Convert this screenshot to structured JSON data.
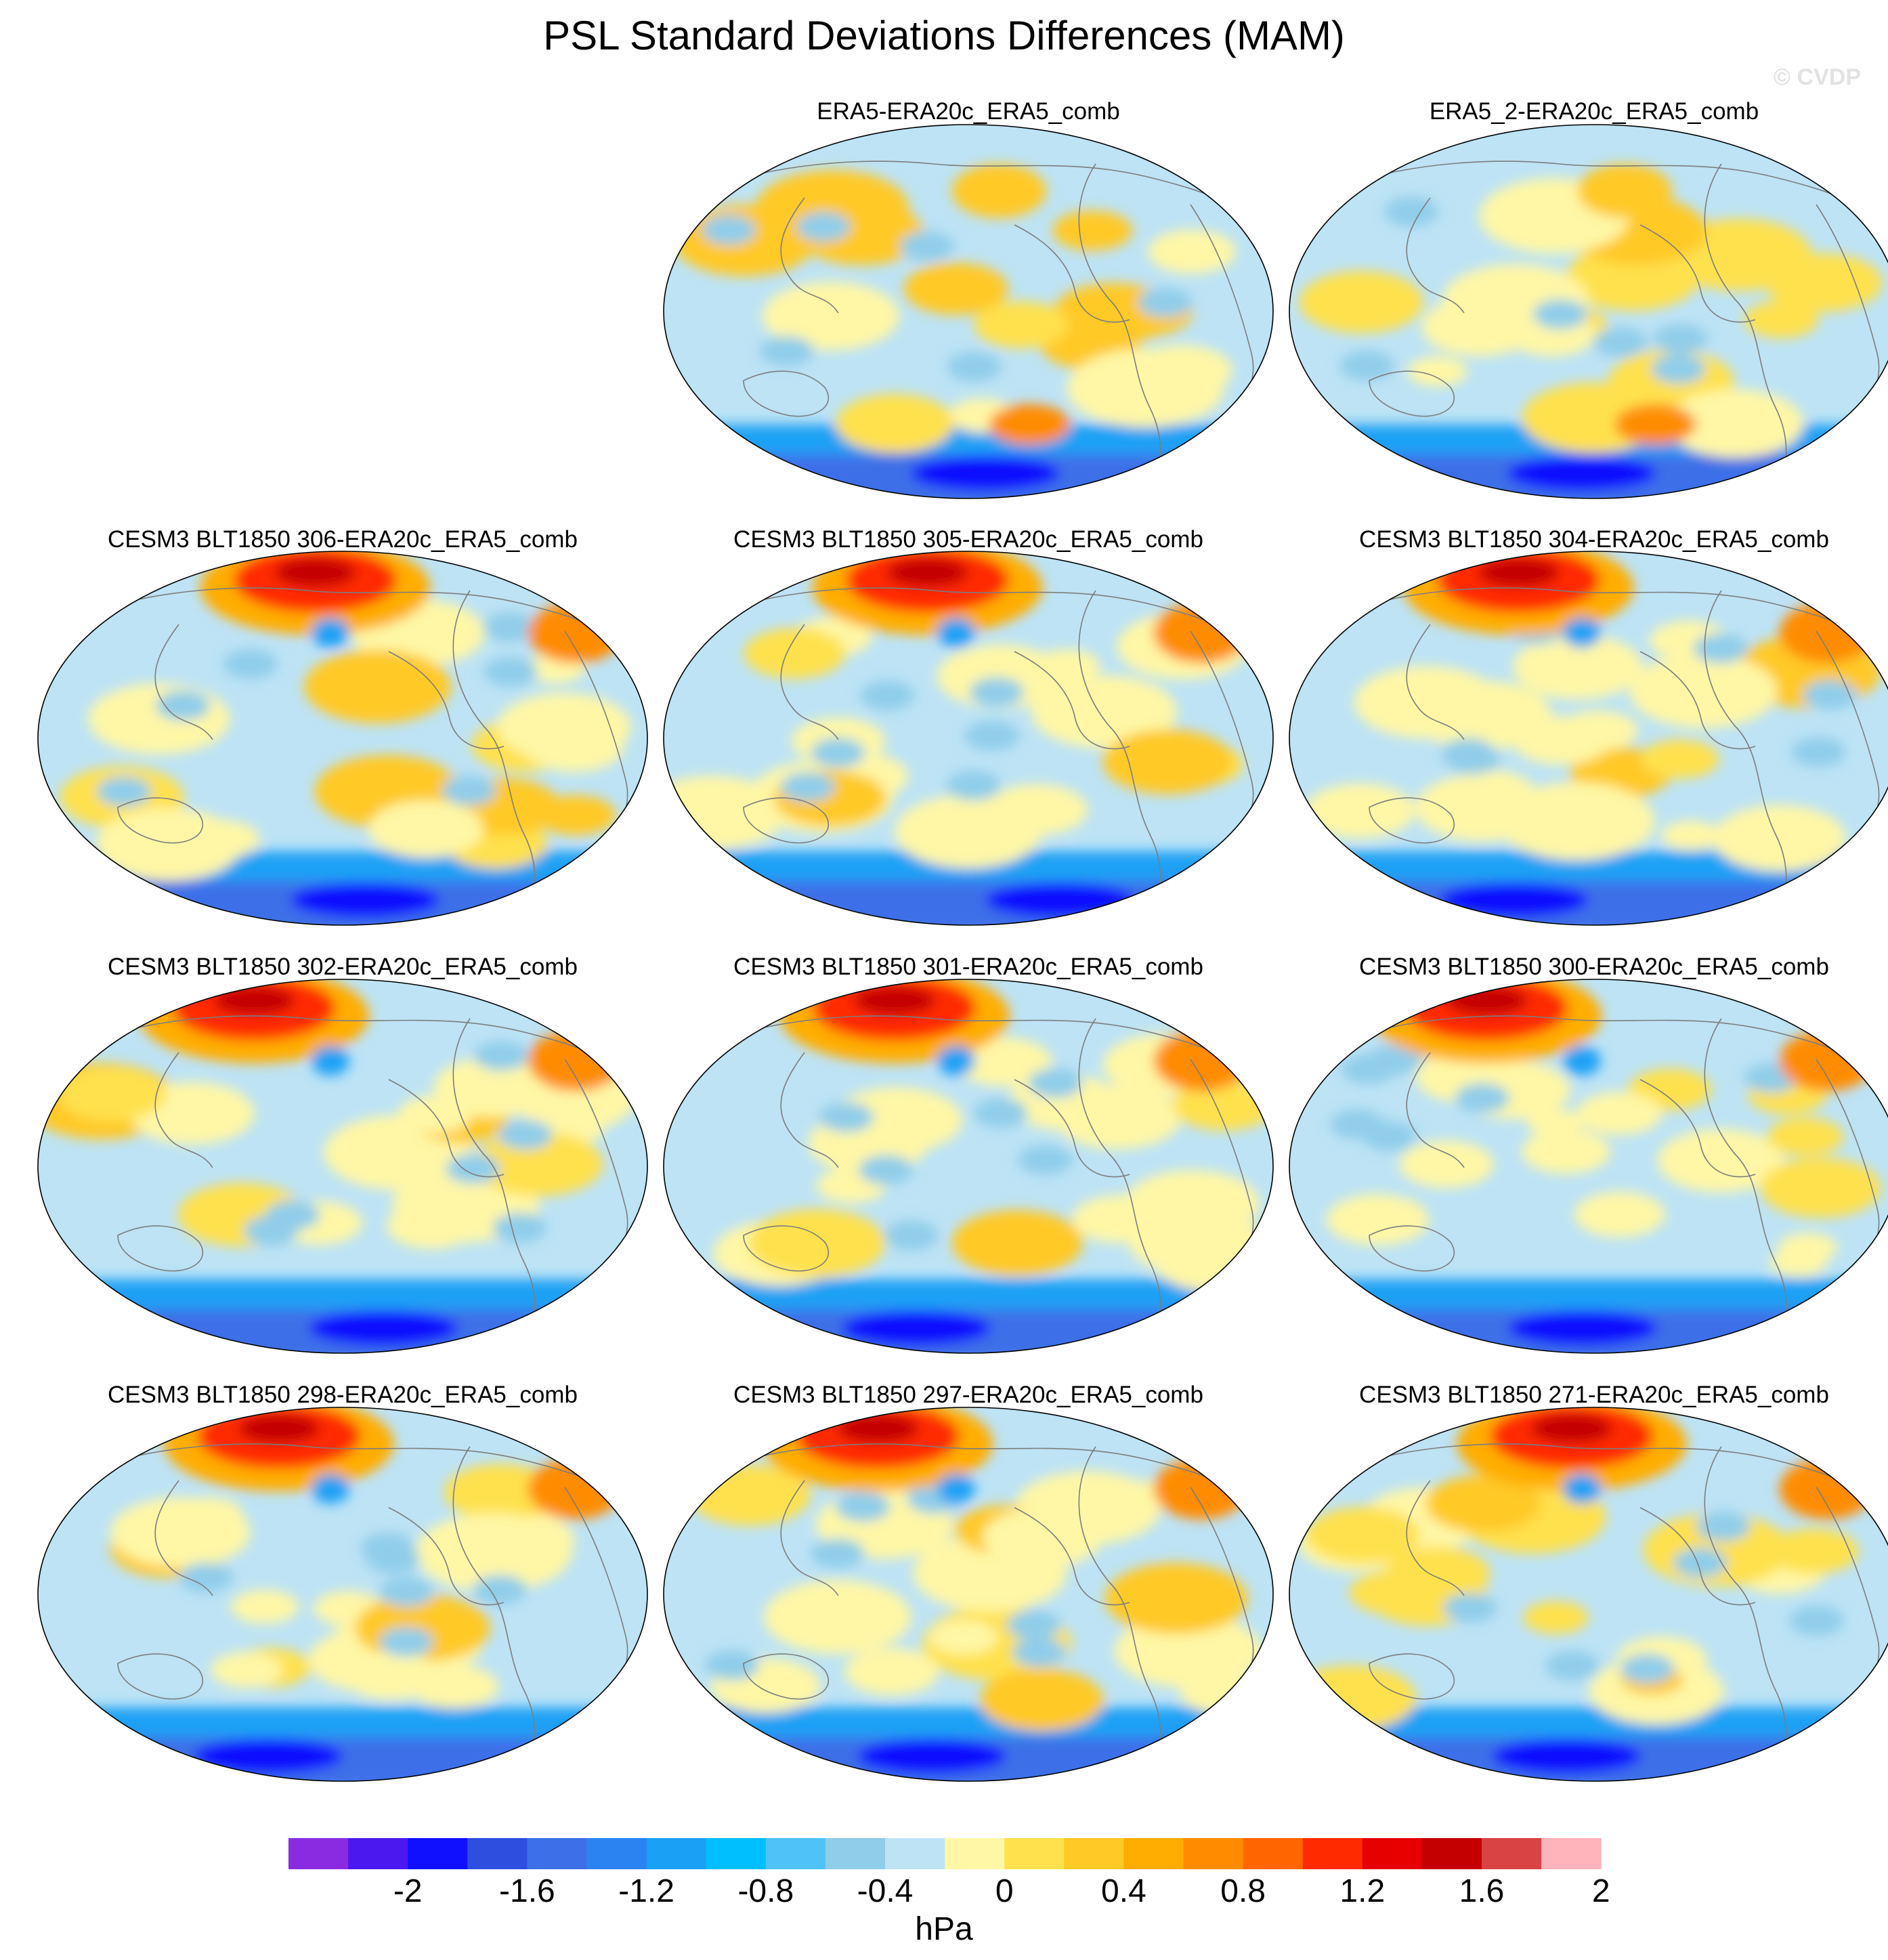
{
  "title": "PSL Standard Deviations Differences (MAM)",
  "watermark": "© CVDP",
  "panels": [
    {
      "title": "ERA5-ERA20c_ERA5_comb",
      "row": 0,
      "col": 1
    },
    {
      "title": "ERA5_2-ERA20c_ERA5_comb",
      "row": 0,
      "col": 2
    },
    {
      "title": "CESM3 BLT1850 306-ERA20c_ERA5_comb",
      "row": 1,
      "col": 0
    },
    {
      "title": "CESM3 BLT1850 305-ERA20c_ERA5_comb",
      "row": 1,
      "col": 1
    },
    {
      "title": "CESM3 BLT1850 304-ERA20c_ERA5_comb",
      "row": 1,
      "col": 2
    },
    {
      "title": "CESM3 BLT1850 302-ERA20c_ERA5_comb",
      "row": 2,
      "col": 0
    },
    {
      "title": "CESM3 BLT1850 301-ERA20c_ERA5_comb",
      "row": 2,
      "col": 1
    },
    {
      "title": "CESM3 BLT1850 300-ERA20c_ERA5_comb",
      "row": 2,
      "col": 2
    },
    {
      "title": "CESM3 BLT1850 298-ERA20c_ERA5_comb",
      "row": 3,
      "col": 0
    },
    {
      "title": "CESM3 BLT1850 297-ERA20c_ERA5_comb",
      "row": 3,
      "col": 1
    },
    {
      "title": "CESM3 BLT1850 271-ERA20c_ERA5_comb",
      "row": 3,
      "col": 2
    }
  ],
  "colorbar": {
    "unit": "hPa",
    "colors": [
      "#8a2be2",
      "#4b18f0",
      "#1010ff",
      "#2e4ee0",
      "#3c6fe8",
      "#2b83f2",
      "#1aa1f5",
      "#00bfff",
      "#4fc3f7",
      "#90cdea",
      "#bde3f5",
      "#fff7a6",
      "#ffe14d",
      "#ffc926",
      "#ffad00",
      "#ff8c00",
      "#ff6600",
      "#ff2a00",
      "#e60000",
      "#c40000",
      "#d94343",
      "#ffb3ba"
    ],
    "tick_labels": [
      "-2",
      "-1.6",
      "-1.2",
      "-0.8",
      "-0.4",
      "0",
      "0.4",
      "0.8",
      "1.2",
      "1.6",
      "2"
    ]
  }
}
